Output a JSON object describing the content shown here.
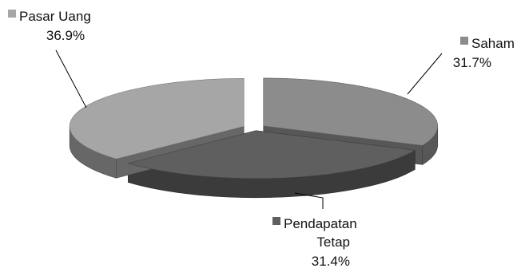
{
  "chart_data": {
    "type": "pie",
    "variant": "3d-exploded",
    "title": "",
    "legend": "none",
    "slices": [
      {
        "label": "Saham",
        "value": 31.7,
        "display": "31.7%",
        "color": "#8c8c8c"
      },
      {
        "label": "Pendapatan Tetap",
        "value": 31.4,
        "display": "31.4%",
        "color": "#5f5f5f"
      },
      {
        "label": "Pasar Uang",
        "value": 36.9,
        "display": "36.9%",
        "color": "#a6a6a6"
      }
    ]
  }
}
